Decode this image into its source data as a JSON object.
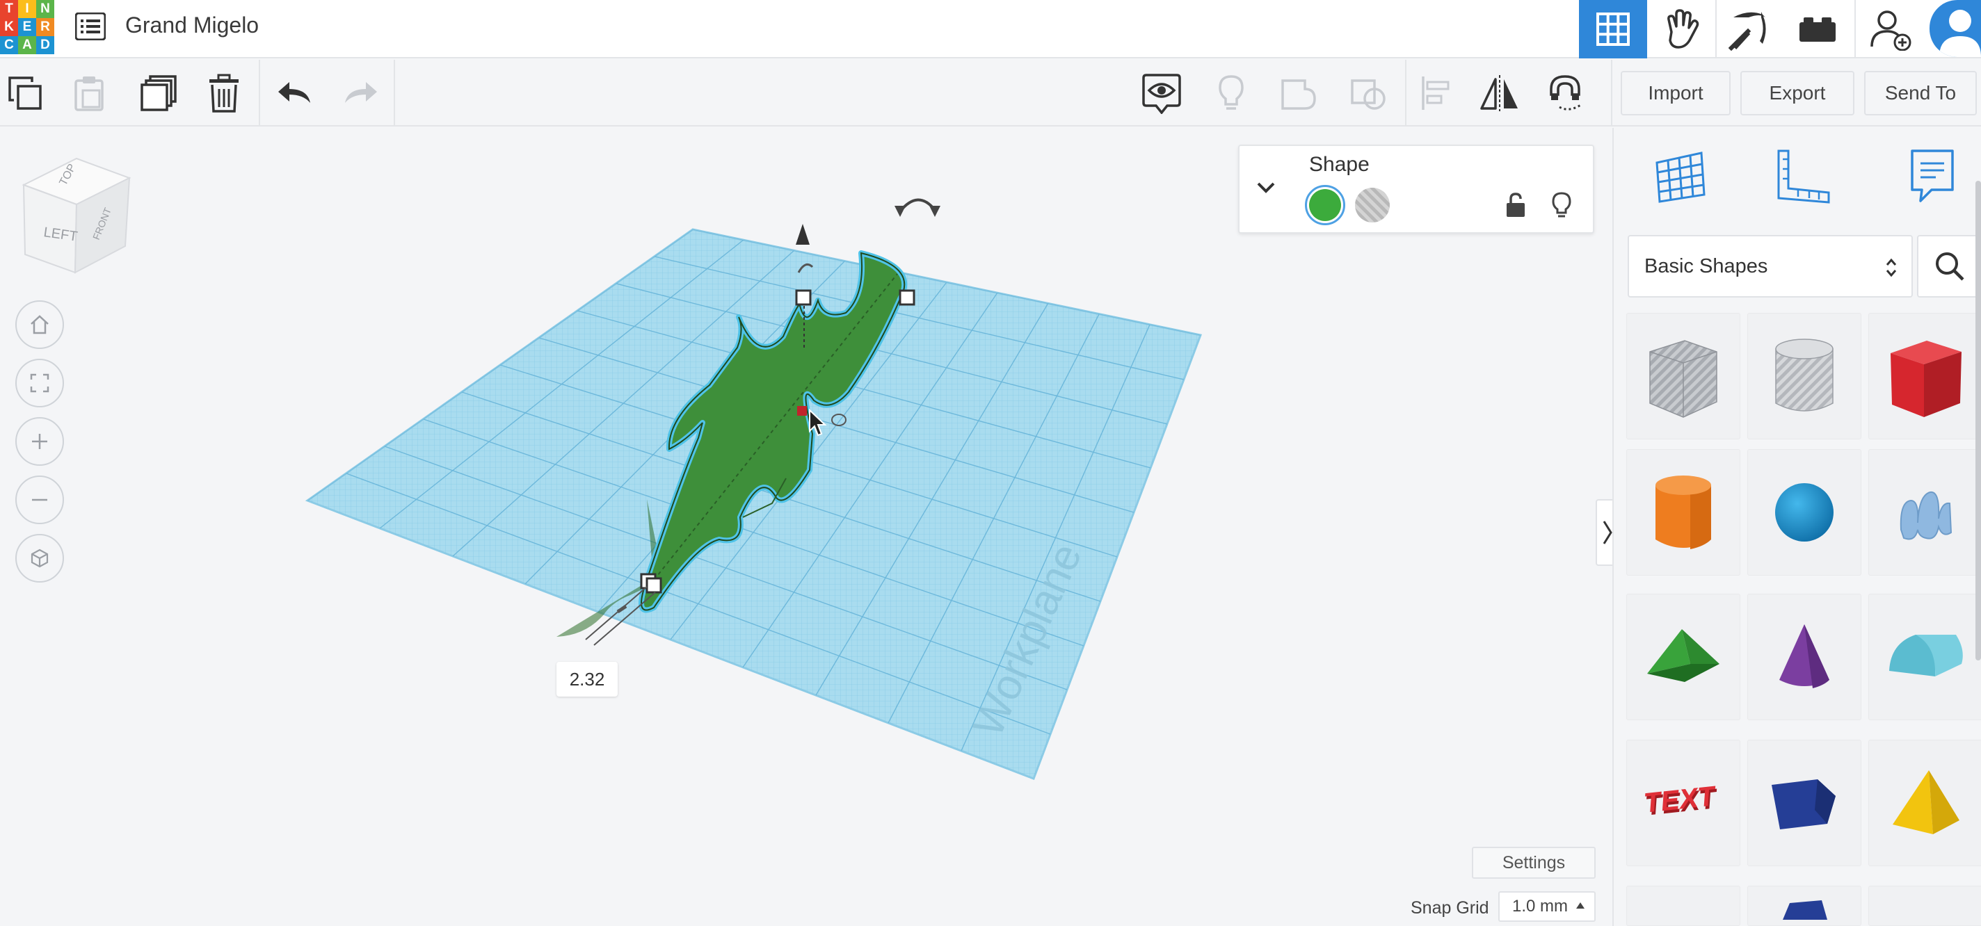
{
  "app": {
    "logo_letters": [
      "T",
      "I",
      "N",
      "K",
      "E",
      "R",
      "C",
      "A",
      "D"
    ],
    "logo_colors": [
      "#e8432d",
      "#fbbd1b",
      "#5bb54a",
      "#e8432d",
      "#1d93d2",
      "#f08a22",
      "#1d93d2",
      "#5bb54a",
      "#1d93d2"
    ],
    "design_title": "Grand Migelo"
  },
  "toolbar": {
    "import_label": "Import",
    "export_label": "Export",
    "sendto_label": "Send To"
  },
  "viewcube": {
    "top": "TOP",
    "left": "LEFT",
    "front": "FRONT"
  },
  "workplane": {
    "label": "Workplane",
    "dimension_value": "2.32"
  },
  "inspector": {
    "title": "Shape",
    "solid_color": "#3cab3c"
  },
  "footer": {
    "settings_label": "Settings",
    "snap_grid_label": "Snap Grid",
    "snap_grid_value": "1.0 mm"
  },
  "library": {
    "category": "Basic Shapes",
    "shapes": [
      {
        "name": "Box",
        "color": "#b9bcc2"
      },
      {
        "name": "Cylinder",
        "color": "#c6c8cc"
      },
      {
        "name": "Box",
        "color": "#d6262e"
      },
      {
        "name": "Cylinder",
        "color": "#ee7d1f"
      },
      {
        "name": "Sphere",
        "color": "#1a94d0"
      },
      {
        "name": "Scribble",
        "color": "#8fb8e0"
      },
      {
        "name": "Roof",
        "color": "#39a33b"
      },
      {
        "name": "Cone",
        "color": "#7b3ea0"
      },
      {
        "name": "Round Roof",
        "color": "#5bbcd0"
      },
      {
        "name": "Text",
        "color": "#d6262e"
      },
      {
        "name": "Polygon",
        "color": "#253e96"
      },
      {
        "name": "Pyramid",
        "color": "#f2c40f"
      }
    ]
  },
  "colors": {
    "accent": "#2f87d9",
    "workplane": "#9ed6ec",
    "shape_green": "#3e8f3a",
    "shape_outline": "#4fc3e8"
  }
}
